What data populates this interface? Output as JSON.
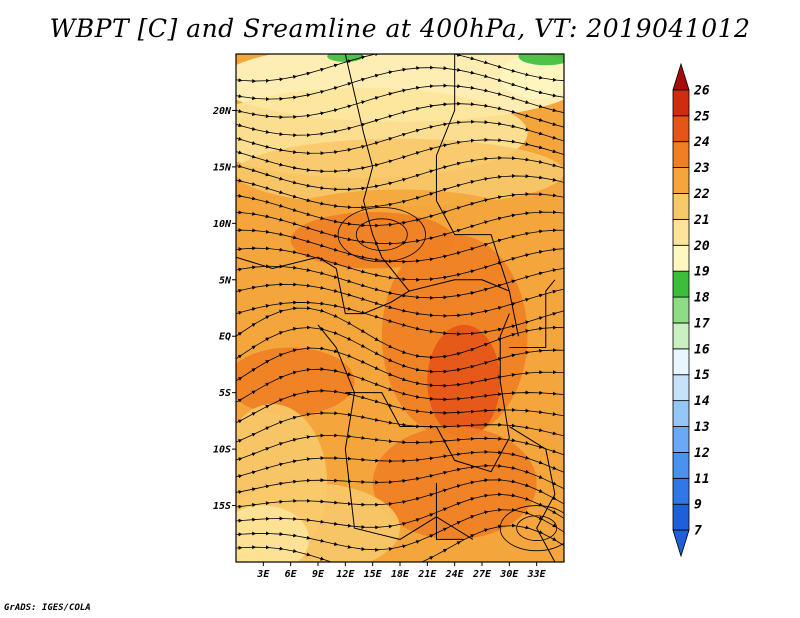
{
  "chart_data": {
    "type": "heatmap",
    "title": "WBPT [C] and Sreamline at 400hPa, VT: 2019041012",
    "variable": "WBPT [C]",
    "overlay": "streamlines",
    "level": "400hPa",
    "valid_time": "2019041012",
    "lon_range": [
      0,
      36
    ],
    "lat_range": [
      -20,
      25
    ],
    "lon_ticks": [
      "3E",
      "6E",
      "9E",
      "12E",
      "15E",
      "18E",
      "21E",
      "24E",
      "27E",
      "30E",
      "33E"
    ],
    "lon_tick_values": [
      3,
      6,
      9,
      12,
      15,
      18,
      21,
      24,
      27,
      30,
      33
    ],
    "lat_ticks": [
      "20N",
      "15N",
      "10N",
      "5N",
      "EQ",
      "5S",
      "10S",
      "15S"
    ],
    "lat_tick_values": [
      20,
      15,
      10,
      5,
      0,
      -5,
      -10,
      -15
    ],
    "colorbar": {
      "labels": [
        "7",
        "9",
        "11",
        "12",
        "13",
        "14",
        "15",
        "16",
        "17",
        "18",
        "19",
        "20",
        "21",
        "22",
        "23",
        "24",
        "25",
        "26"
      ],
      "colors": [
        "#1f5fd8",
        "#2f78e6",
        "#4b92ee",
        "#6aa9f3",
        "#95c6f8",
        "#c5e2fb",
        "#e9f6ff",
        "#c8f0c0",
        "#8edc84",
        "#3cbd3c",
        "#fff6c0",
        "#fde49a",
        "#f8c96a",
        "#f4a63c",
        "#ef7f22",
        "#e55418",
        "#cf2c10",
        "#a60c0c"
      ]
    },
    "credit": "GrADS: IGES/COLA"
  }
}
